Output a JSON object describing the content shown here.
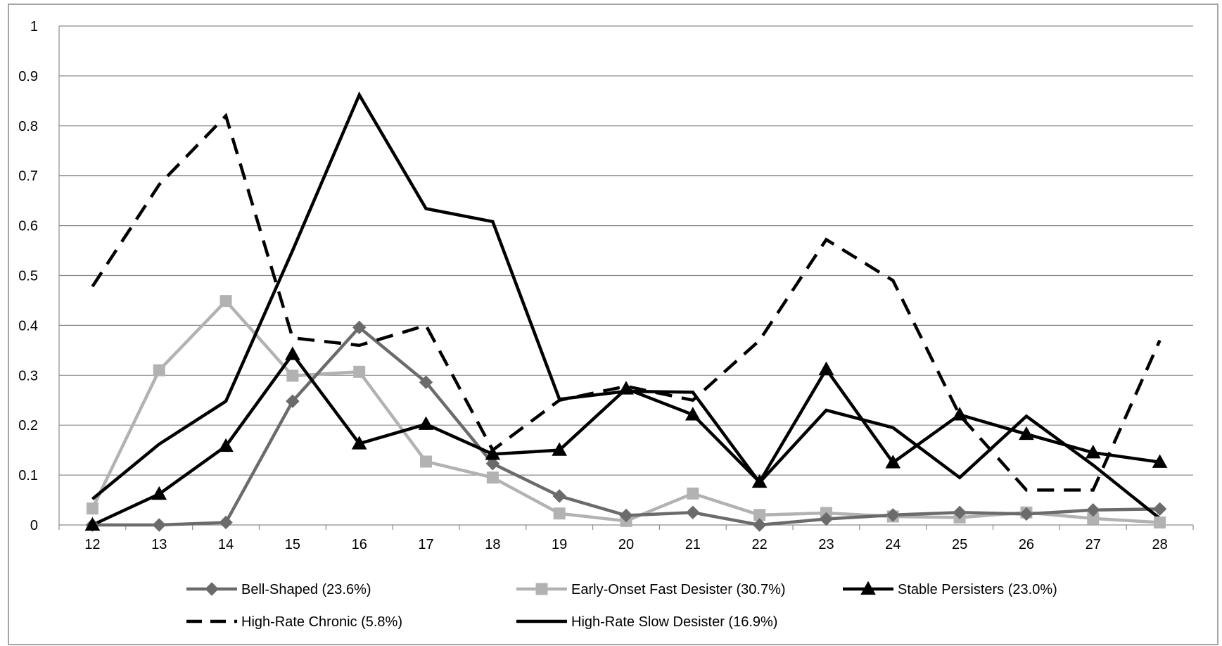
{
  "chart_data": {
    "type": "line",
    "title": "",
    "xlabel": "",
    "ylabel": "",
    "x": [
      12,
      13,
      14,
      15,
      16,
      17,
      18,
      19,
      20,
      21,
      22,
      23,
      24,
      25,
      26,
      27,
      28
    ],
    "x_tick_labels": [
      "12",
      "13",
      "14",
      "15",
      "16",
      "17",
      "18",
      "19",
      "20",
      "21",
      "22",
      "23",
      "24",
      "25",
      "26",
      "27",
      "28"
    ],
    "ylim": [
      0,
      1
    ],
    "y_ticks": [
      0,
      0.1,
      0.2,
      0.3,
      0.4,
      0.5,
      0.6,
      0.7,
      0.8,
      0.9,
      1
    ],
    "y_tick_labels": [
      "0",
      "0.1",
      "0.2",
      "0.3",
      "0.4",
      "0.5",
      "0.6",
      "0.7",
      "0.8",
      "0.9",
      "1"
    ],
    "grid": "horizontal",
    "legend_position": "bottom",
    "series": [
      {
        "name": "Bell-Shaped (23.6%)",
        "color": "#6b6b6b",
        "marker": "diamond",
        "line_style": "solid",
        "values": [
          0,
          0,
          0.005,
          0.248,
          0.396,
          0.286,
          0.123,
          0.058,
          0.019,
          0.025,
          0,
          0.012,
          0.02,
          0.025,
          0.022,
          0.03,
          0.032
        ]
      },
      {
        "name": "Early-Onset Fast Desister (30.7%)",
        "color": "#b2b2b2",
        "marker": "square",
        "line_style": "solid",
        "values": [
          0.033,
          0.31,
          0.449,
          0.299,
          0.307,
          0.127,
          0.095,
          0.023,
          0.008,
          0.063,
          0.02,
          0.024,
          0.017,
          0.015,
          0.025,
          0.013,
          0.005
        ]
      },
      {
        "name": "Stable Persisters (23.0%)",
        "color": "#000000",
        "marker": "triangle",
        "line_style": "solid",
        "values": [
          0,
          0.062,
          0.158,
          0.342,
          0.163,
          0.202,
          0.142,
          0.15,
          0.273,
          0.221,
          0.086,
          0.312,
          0.125,
          0.221,
          0.182,
          0.145,
          0.126
        ]
      },
      {
        "name": "High-Rate Chronic (5.8%)",
        "color": "#000000",
        "marker": "none",
        "line_style": "dashed",
        "values": [
          0.478,
          0.682,
          0.82,
          0.375,
          0.36,
          0.4,
          0.15,
          0.25,
          0.278,
          0.25,
          0.37,
          0.572,
          0.49,
          0.22,
          0.07,
          0.07,
          0.37
        ]
      },
      {
        "name": "High-Rate Slow Desister (16.9%)",
        "color": "#000000",
        "marker": "none",
        "line_style": "solid",
        "values": [
          0.052,
          0.162,
          0.248,
          0.55,
          0.862,
          0.634,
          0.608,
          0.252,
          0.268,
          0.266,
          0.085,
          0.23,
          0.195,
          0.095,
          0.218,
          0.12,
          0.013
        ]
      }
    ]
  }
}
